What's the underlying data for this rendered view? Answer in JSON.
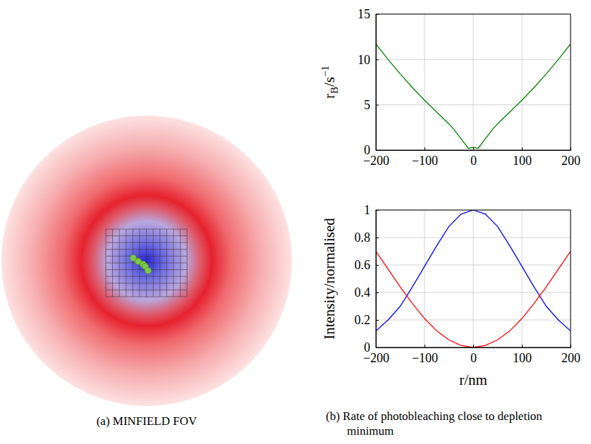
{
  "chart_data": [
    {
      "type": "line",
      "ylabel": [
        "r",
        "B",
        "/s",
        "−1"
      ],
      "x": [
        -200,
        -175,
        -150,
        -125,
        -100,
        -75,
        -50,
        -40,
        -30,
        -20,
        -10,
        0,
        10,
        20,
        30,
        40,
        50,
        75,
        100,
        125,
        150,
        175,
        200
      ],
      "series": [
        {
          "color": "#008000",
          "values": [
            11.7,
            10.0,
            8.4,
            6.9,
            5.5,
            4.2,
            2.9,
            2.3,
            1.6,
            0.9,
            0.2,
            0.3,
            0.2,
            0.9,
            1.6,
            2.3,
            2.9,
            4.2,
            5.5,
            6.9,
            8.4,
            10.0,
            11.7
          ]
        }
      ],
      "xlim": [
        -200,
        200
      ],
      "xticks": [
        {
          "value": -200,
          "label": "−200"
        },
        {
          "value": -100,
          "label": "−100"
        },
        0,
        100,
        200
      ],
      "ylim": [
        0,
        15
      ],
      "yticks": [
        0,
        5,
        10,
        15
      ],
      "grid": true
    },
    {
      "type": "line",
      "xlabel": "r/nm",
      "ylabel": "Intensity/normalised",
      "x": [
        -200,
        -175,
        -150,
        -125,
        -100,
        -75,
        -50,
        -25,
        0,
        25,
        50,
        75,
        100,
        125,
        150,
        175,
        200
      ],
      "series": [
        {
          "color": "#0000ff",
          "values": [
            0.12,
            0.2,
            0.3,
            0.44,
            0.59,
            0.74,
            0.88,
            0.97,
            1,
            0.97,
            0.88,
            0.74,
            0.59,
            0.44,
            0.3,
            0.2,
            0.12
          ]
        },
        {
          "color": "#ff0000",
          "values": [
            0.7,
            0.57,
            0.44,
            0.32,
            0.21,
            0.12,
            0.055,
            0.015,
            0,
            0.015,
            0.055,
            0.12,
            0.21,
            0.32,
            0.44,
            0.57,
            0.7
          ]
        }
      ],
      "xlim": [
        -200,
        200
      ],
      "xticks": [
        {
          "value": -200,
          "label": "−200"
        },
        {
          "value": -100,
          "label": "−100"
        },
        0,
        100,
        200
      ],
      "ylim": [
        0,
        1
      ],
      "yticks": [
        0,
        0.2,
        0.4,
        0.6,
        0.8,
        1
      ],
      "grid": true
    }
  ],
  "diagram": {
    "caption": "(a) MINFIELD FOV"
  },
  "caption": "(b) Rate of photobleaching close to depletion minimum"
}
